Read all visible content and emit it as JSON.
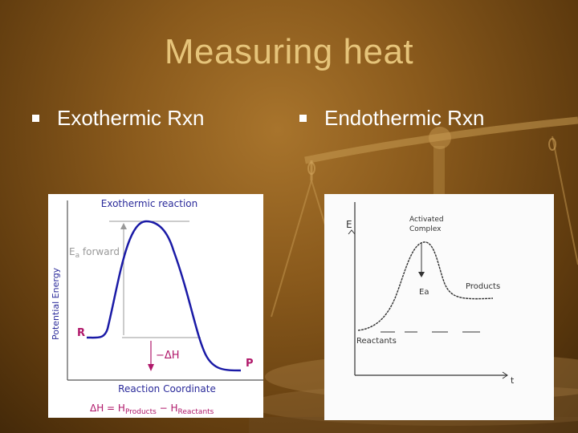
{
  "slide": {
    "title": "Measuring heat"
  },
  "bullets": [
    {
      "label": "Exothermic Rxn"
    },
    {
      "label": "Endothermic Rxn"
    }
  ],
  "exothermic_diagram": {
    "title": "Exothermic reaction",
    "ylabel": "Potential Energy",
    "xlabel": "Reaction Coordinate",
    "ea_label_main": "E",
    "ea_label_sub": "a",
    "ea_label_rest": " forward",
    "reactant_label": "R",
    "product_label": "P",
    "delta_h_label": "−ΔH",
    "equation_delta": "ΔH",
    "equation_equals": " = ",
    "equation_h1": "H",
    "equation_h1_sub": "Products",
    "equation_minus": " − ",
    "equation_h2": "H",
    "equation_h2_sub": "Reactants",
    "colors": {
      "curve": "#1a1aa6",
      "accent": "#b0186a",
      "title": "#2a2a9a"
    }
  },
  "endothermic_diagram": {
    "e_label": "E",
    "activated_complex_line1": "Activated",
    "activated_complex_line2": "Complex",
    "ea_label": "Ea",
    "products_label": "Products",
    "reactants_label": "Reactants",
    "t_label": "t"
  }
}
